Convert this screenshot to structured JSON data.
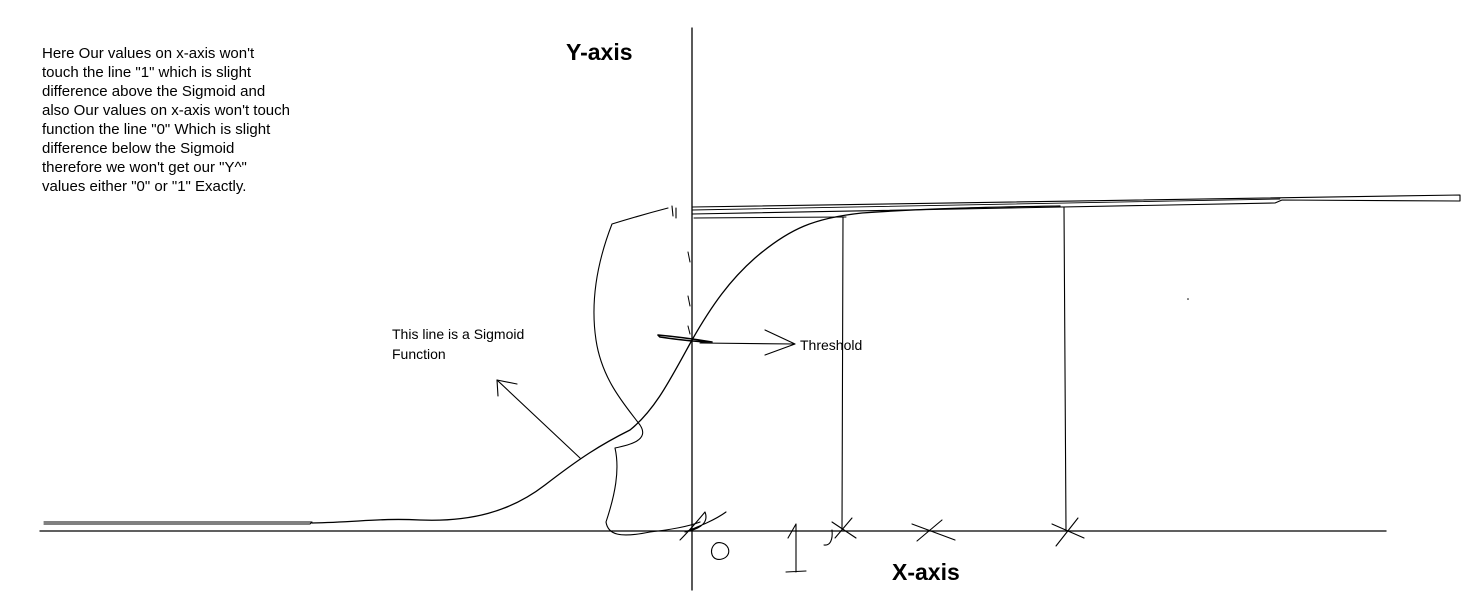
{
  "note": "Here Our values on x-axis won't\ntouch the line \"1\" which is slight\ndifference above the Sigmoid and\nalso Our values on x-axis won't touch\nfunction the line \"0\" Which is slight\ndifference below the Sigmoid\ntherefore we won't get our \"Y^\"\nvalues either \"0\" or \"1\" Exactly.",
  "axes": {
    "y_title": "Y-axis",
    "x_title": "X-axis"
  },
  "labels": {
    "sigmoid": "This line is a Sigmoid\nFunction",
    "threshold": "Threshold"
  },
  "colors": {
    "ink": "#000000",
    "background": "#ffffff"
  }
}
